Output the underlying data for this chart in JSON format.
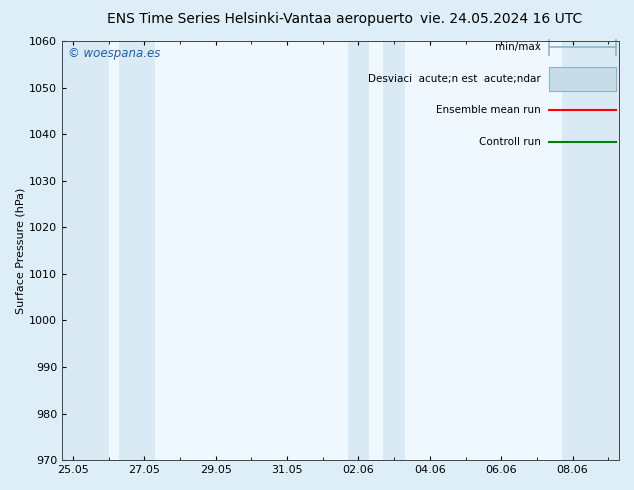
{
  "title": "ENS Time Series Helsinki-Vantaa aeropuerto",
  "date_str": "vie. 24.05.2024 16 UTC",
  "ylabel": "Surface Pressure (hPa)",
  "ylim": [
    970,
    1060
  ],
  "yticks": [
    970,
    980,
    990,
    1000,
    1010,
    1020,
    1030,
    1040,
    1050,
    1060
  ],
  "xtick_labels": [
    "25.05",
    "27.05",
    "29.05",
    "31.05",
    "02.06",
    "04.06",
    "06.06",
    "08.06"
  ],
  "xtick_positions": [
    0,
    2,
    4,
    6,
    8,
    10,
    12,
    14
  ],
  "xlim": [
    -0.3,
    15.3
  ],
  "shaded_bands": [
    {
      "x_start": -0.3,
      "x_end": 1.0,
      "color": "#daeaf5"
    },
    {
      "x_start": 1.3,
      "x_end": 2.3,
      "color": "#daeaf5"
    },
    {
      "x_start": 7.7,
      "x_end": 8.3,
      "color": "#daeaf5"
    },
    {
      "x_start": 8.7,
      "x_end": 9.3,
      "color": "#daeaf5"
    },
    {
      "x_start": 13.7,
      "x_end": 15.3,
      "color": "#daeaf5"
    }
  ],
  "watermark": "© woespana.es",
  "watermark_color": "#1a5fa8",
  "legend_labels": [
    "min/max",
    "Desviaci  acute;n est  acute;ndar",
    "Ensemble mean run",
    "Controll run"
  ],
  "legend_colors_line": [
    "#8ab4cc",
    "#8ab4cc",
    "red",
    "green"
  ],
  "legend_styles": [
    "hbar",
    "rect",
    "line",
    "line"
  ],
  "bg_color": "#ddeef8",
  "plot_bg_color": "#f0f8ff",
  "title_fontsize": 10,
  "axis_label_fontsize": 8,
  "tick_fontsize": 8,
  "legend_fontsize": 7.5
}
